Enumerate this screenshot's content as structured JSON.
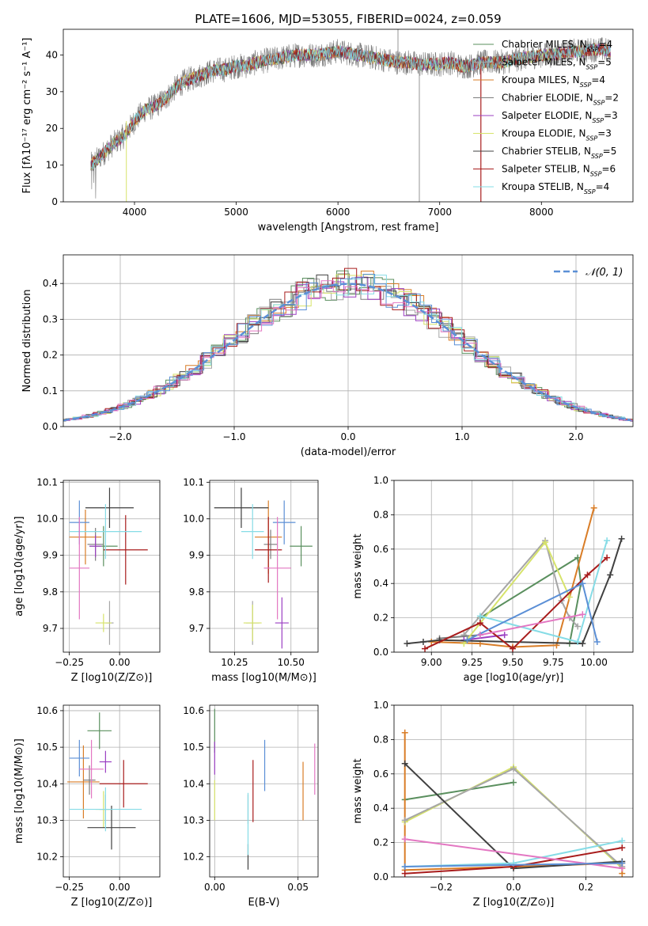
{
  "figure": {
    "title": "PLATE=1606, MJD=53055, FIBERID=0024, z=0.059"
  },
  "models": [
    {
      "name": "Chabrier MILES",
      "nssp": "4",
      "color": "#5a8f5e"
    },
    {
      "name": "Salpeter MILES",
      "nssp": "5",
      "color": "#a6a6a6"
    },
    {
      "name": "Kroupa MILES",
      "nssp": "4",
      "color": "#d97d27"
    },
    {
      "name": "Chabrier ELODIE",
      "nssp": "2",
      "color": "#7d7d7d"
    },
    {
      "name": "Salpeter ELODIE",
      "nssp": "3",
      "color": "#9b3fc2"
    },
    {
      "name": "Kroupa ELODIE",
      "nssp": "3",
      "color": "#d6e36a"
    },
    {
      "name": "Chabrier STELIB",
      "nssp": "5",
      "color": "#404040"
    },
    {
      "name": "Salpeter STELIB",
      "nssp": "6",
      "color": "#a81c1c"
    },
    {
      "name": "Kroupa STELIB",
      "nssp": "4",
      "color": "#86dce6"
    }
  ],
  "chart_data": [
    {
      "id": "spectrum",
      "type": "line",
      "xlabel": "wavelength [Angstrom, rest frame]",
      "ylabel": "Flux [fλ10⁻¹⁷ erg cm⁻² s⁻¹ A⁻¹]",
      "xlim": [
        3300,
        8900
      ],
      "ylim": [
        0,
        47
      ],
      "xticks": [
        4000,
        5000,
        6000,
        7000,
        8000
      ],
      "yticks": [
        0,
        10,
        20,
        30,
        40
      ],
      "grid": false,
      "legend": "top-right",
      "continuum": {
        "x": [
          3570,
          3650,
          3800,
          3900,
          4000,
          4100,
          4200,
          4300,
          4400,
          4500,
          4600,
          4700,
          4800,
          4900,
          5000,
          5100,
          5200,
          5300,
          5400,
          5500,
          5600,
          5700,
          5800,
          5900,
          6000,
          6100,
          6200,
          6300,
          6400,
          6500,
          6600,
          6700,
          6800,
          6900,
          7000,
          7100,
          7200,
          7300,
          7400,
          7500,
          7600,
          7700,
          7800,
          7900,
          8000,
          8100,
          8200,
          8300,
          8400,
          8500,
          8600,
          8680
        ],
        "y": [
          10,
          12,
          16,
          18,
          22,
          25,
          26,
          28,
          31,
          33,
          34,
          35,
          36,
          36,
          37,
          37,
          38,
          38.5,
          39,
          39.5,
          40,
          40,
          40,
          40.5,
          41,
          40.5,
          40,
          39.5,
          39,
          38.5,
          38,
          38,
          37.5,
          37.5,
          37.5,
          38,
          37,
          37,
          38,
          38,
          38,
          38.5,
          39,
          39.5,
          40,
          40,
          40.5,
          41,
          41,
          41.5,
          41.5,
          41
        ]
      }
    },
    {
      "id": "residuals",
      "type": "area",
      "xlabel": "(data-model)/error",
      "ylabel": "Normed distribution",
      "xlim": [
        -2.5,
        2.5
      ],
      "ylim": [
        0,
        0.48
      ],
      "xticks": [
        -2,
        -1,
        0,
        1,
        2
      ],
      "yticks": [
        0.0,
        0.1,
        0.2,
        0.3,
        0.4
      ],
      "grid": true,
      "legend": "top-right",
      "legend_label": "𝒩(0, 1)",
      "gaussian": {
        "mu": 0,
        "sigma": 1,
        "color": "#5b8fd6"
      }
    },
    {
      "id": "age-vs-Z",
      "type": "scatter",
      "xlabel": "Z [log10(Z/Z⊙)]",
      "ylabel": "age [log10(age/yr)]",
      "xlim": [
        -0.28,
        0.2
      ],
      "ylim": [
        9.635,
        10.105
      ],
      "xticks": [
        -0.25,
        0.0
      ],
      "yticks": [
        9.7,
        9.8,
        9.9,
        10.0,
        10.1
      ],
      "grid": true,
      "points": [
        {
          "x": -0.08,
          "y": 9.925,
          "xerr": 0.07,
          "yerr": 0.055,
          "color": "#5a8f5e"
        },
        {
          "x": -0.05,
          "y": 9.715,
          "xerr": 0.02,
          "yerr": 0.06,
          "color": "#a6a6a6"
        },
        {
          "x": -0.17,
          "y": 9.95,
          "xerr": 0.08,
          "yerr": 0.075,
          "color": "#d97d27"
        },
        {
          "x": -0.12,
          "y": 9.93,
          "xerr": 0.04,
          "yerr": 0.045,
          "color": "#7d7d7d"
        },
        {
          "x": -0.12,
          "y": 9.925,
          "xerr": 0.03,
          "yerr": 0.03,
          "color": "#9b3fc2"
        },
        {
          "x": -0.08,
          "y": 9.715,
          "xerr": 0.04,
          "yerr": 0.025,
          "color": "#d6e36a"
        },
        {
          "x": -0.05,
          "y": 10.03,
          "xerr": 0.12,
          "yerr": 0.055,
          "color": "#404040"
        },
        {
          "x": 0.03,
          "y": 9.915,
          "xerr": 0.11,
          "yerr": 0.095,
          "color": "#a81c1c"
        },
        {
          "x": -0.07,
          "y": 9.965,
          "xerr": 0.18,
          "yerr": 0.075,
          "color": "#86dce6"
        },
        {
          "x": -0.2,
          "y": 9.99,
          "xerr": 0.05,
          "yerr": 0.06,
          "color": "#5b8fd6"
        },
        {
          "x": -0.2,
          "y": 9.865,
          "xerr": 0.05,
          "yerr": 0.14,
          "color": "#e377c2"
        }
      ]
    },
    {
      "id": "age-vs-mass",
      "type": "scatter",
      "xlabel": "mass [log10(M/M⊙)]",
      "ylabel": "",
      "xlim": [
        10.14,
        10.62
      ],
      "ylim": [
        9.635,
        10.105
      ],
      "xticks": [
        10.25,
        10.5
      ],
      "yticks": [
        9.7,
        9.8,
        9.9,
        10.0,
        10.1
      ],
      "grid": true,
      "points": [
        {
          "x": 10.545,
          "y": 9.925,
          "xerr": 0.05,
          "yerr": 0.055,
          "color": "#5a8f5e"
        },
        {
          "x": 10.33,
          "y": 9.715,
          "xerr": 0.03,
          "yerr": 0.06,
          "color": "#a6a6a6"
        },
        {
          "x": 10.4,
          "y": 9.95,
          "xerr": 0.06,
          "yerr": 0.1,
          "color": "#d97d27"
        },
        {
          "x": 10.41,
          "y": 9.93,
          "xerr": 0.03,
          "yerr": 0.04,
          "color": "#7d7d7d"
        },
        {
          "x": 10.46,
          "y": 9.715,
          "xerr": 0.03,
          "yerr": 0.07,
          "color": "#9b3fc2"
        },
        {
          "x": 10.33,
          "y": 9.715,
          "xerr": 0.04,
          "yerr": 0.05,
          "color": "#d6e36a"
        },
        {
          "x": 10.28,
          "y": 10.03,
          "xerr": 0.12,
          "yerr": 0.055,
          "color": "#404040"
        },
        {
          "x": 10.4,
          "y": 9.915,
          "xerr": 0.06,
          "yerr": 0.09,
          "color": "#a81c1c"
        },
        {
          "x": 10.33,
          "y": 9.965,
          "xerr": 0.05,
          "yerr": 0.075,
          "color": "#86dce6"
        },
        {
          "x": 10.47,
          "y": 9.99,
          "xerr": 0.05,
          "yerr": 0.06,
          "color": "#5b8fd6"
        },
        {
          "x": 10.44,
          "y": 9.865,
          "xerr": 0.06,
          "yerr": 0.14,
          "color": "#e377c2"
        }
      ]
    },
    {
      "id": "weight-vs-age",
      "type": "line",
      "xlabel": "age [log10(age/yr)]",
      "ylabel": "mass weight",
      "xlim": [
        8.77,
        10.24
      ],
      "ylim": [
        0,
        1.0
      ],
      "xticks": [
        9.0,
        9.25,
        9.5,
        9.75,
        10.0
      ],
      "yticks": [
        0.0,
        0.2,
        0.4,
        0.6,
        0.8,
        1.0
      ],
      "grid": true,
      "series": [
        {
          "color": "#5a8f5e",
          "x": [
            9.85,
            9.92,
            9.9,
            9.3
          ],
          "y": [
            0.05,
            0.4,
            0.55,
            0.2
          ]
        },
        {
          "color": "#a6a6a6",
          "x": [
            9.2,
            9.7,
            9.8,
            9.85,
            9.9
          ],
          "y": [
            0.1,
            0.65,
            0.3,
            0.2,
            0.15
          ]
        },
        {
          "color": "#d97d27",
          "x": [
            9.0,
            9.3,
            9.5,
            9.77,
            10.0
          ],
          "y": [
            0.06,
            0.05,
            0.03,
            0.04,
            0.84
          ]
        },
        {
          "color": "#7d7d7d",
          "x": [
            9.05,
            9.3
          ],
          "y": [
            0.08,
            0.1
          ]
        },
        {
          "color": "#9b3fc2",
          "x": [
            9.2,
            9.45
          ],
          "y": [
            0.07,
            0.1
          ]
        },
        {
          "color": "#d6e36a",
          "x": [
            9.2,
            9.7,
            9.85
          ],
          "y": [
            0.05,
            0.64,
            0.32
          ]
        },
        {
          "color": "#404040",
          "x": [
            8.85,
            8.95,
            9.05,
            9.93,
            10.1,
            10.17
          ],
          "y": [
            0.05,
            0.06,
            0.07,
            0.05,
            0.45,
            0.66
          ]
        },
        {
          "color": "#a81c1c",
          "x": [
            8.96,
            9.3,
            9.5,
            9.96,
            10.08
          ],
          "y": [
            0.02,
            0.17,
            0.02,
            0.45,
            0.55
          ]
        },
        {
          "color": "#86dce6",
          "x": [
            9.3,
            9.9,
            10.08
          ],
          "y": [
            0.21,
            0.06,
            0.65
          ]
        },
        {
          "color": "#5b8fd6",
          "x": [
            9.22,
            9.93,
            10.02
          ],
          "y": [
            0.07,
            0.4,
            0.06
          ]
        },
        {
          "color": "#e377c2",
          "x": [
            9.3,
            9.93
          ],
          "y": [
            0.1,
            0.22
          ]
        }
      ]
    },
    {
      "id": "mass-vs-Z",
      "type": "scatter",
      "xlabel": "Z [log10(Z/Z⊙)]",
      "ylabel": "mass [log10(M/M⊙)]",
      "xlim": [
        -0.28,
        0.2
      ],
      "ylim": [
        10.145,
        10.615
      ],
      "xticks": [
        -0.25,
        0.0
      ],
      "yticks": [
        10.2,
        10.3,
        10.4,
        10.5,
        10.6
      ],
      "grid": true,
      "points": [
        {
          "x": -0.1,
          "y": 10.545,
          "xerr": 0.06,
          "yerr": 0.05,
          "color": "#5a8f5e"
        },
        {
          "x": -0.07,
          "y": 10.33,
          "xerr": 0.03,
          "yerr": 0.04,
          "color": "#a6a6a6"
        },
        {
          "x": -0.18,
          "y": 10.405,
          "xerr": 0.08,
          "yerr": 0.1,
          "color": "#d97d27"
        },
        {
          "x": -0.15,
          "y": 10.41,
          "xerr": 0.03,
          "yerr": 0.04,
          "color": "#7d7d7d"
        },
        {
          "x": -0.07,
          "y": 10.46,
          "xerr": 0.03,
          "yerr": 0.03,
          "color": "#9b3fc2"
        },
        {
          "x": -0.08,
          "y": 10.33,
          "xerr": 0.04,
          "yerr": 0.05,
          "color": "#d6e36a"
        },
        {
          "x": -0.04,
          "y": 10.28,
          "xerr": 0.12,
          "yerr": 0.06,
          "color": "#404040"
        },
        {
          "x": 0.02,
          "y": 10.4,
          "xerr": 0.12,
          "yerr": 0.065,
          "color": "#a81c1c"
        },
        {
          "x": -0.07,
          "y": 10.33,
          "xerr": 0.18,
          "yerr": 0.06,
          "color": "#86dce6"
        },
        {
          "x": -0.2,
          "y": 10.47,
          "xerr": 0.05,
          "yerr": 0.05,
          "color": "#5b8fd6"
        },
        {
          "x": -0.14,
          "y": 10.44,
          "xerr": 0.06,
          "yerr": 0.08,
          "color": "#e377c2"
        }
      ]
    },
    {
      "id": "mass-vs-EBV",
      "type": "scatter",
      "xlabel": "E(B-V)",
      "ylabel": "",
      "xlim": [
        -0.003,
        0.062
      ],
      "ylim": [
        10.145,
        10.615
      ],
      "xticks": [
        0.0,
        0.05
      ],
      "yticks": [
        10.2,
        10.3,
        10.4,
        10.5,
        10.6
      ],
      "grid": true,
      "points": [
        {
          "x": 0.0,
          "y": 10.545,
          "xerr": 0,
          "yerr": 0.06,
          "color": "#5a8f5e"
        },
        {
          "x": 0.02,
          "y": 10.33,
          "xerr": 0,
          "yerr": 0.04,
          "color": "#a6a6a6"
        },
        {
          "x": 0.053,
          "y": 10.38,
          "xerr": 0,
          "yerr": 0.08,
          "color": "#d97d27"
        },
        {
          "x": 0.0,
          "y": 10.47,
          "xerr": 0,
          "yerr": 0.045,
          "color": "#9b3fc2"
        },
        {
          "x": 0.0,
          "y": 10.355,
          "xerr": 0,
          "yerr": 0.055,
          "color": "#d6e36a"
        },
        {
          "x": 0.02,
          "y": 10.2,
          "xerr": 0,
          "yerr": 0.035,
          "color": "#404040"
        },
        {
          "x": 0.023,
          "y": 10.38,
          "xerr": 0,
          "yerr": 0.085,
          "color": "#a81c1c"
        },
        {
          "x": 0.02,
          "y": 10.29,
          "xerr": 0,
          "yerr": 0.085,
          "color": "#86dce6"
        },
        {
          "x": 0.03,
          "y": 10.45,
          "xerr": 0,
          "yerr": 0.07,
          "color": "#5b8fd6"
        },
        {
          "x": 0.06,
          "y": 10.44,
          "xerr": 0,
          "yerr": 0.07,
          "color": "#e377c2"
        }
      ]
    },
    {
      "id": "weight-vs-Z",
      "type": "line",
      "xlabel": "Z [log10(Z/Z⊙)]",
      "ylabel": "mass weight",
      "xlim": [
        -0.33,
        0.33
      ],
      "ylim": [
        0,
        1.0
      ],
      "xticks": [
        -0.2,
        0.0,
        0.2
      ],
      "yticks": [
        0.0,
        0.2,
        0.4,
        0.6,
        0.8,
        1.0
      ],
      "grid": true,
      "series": [
        {
          "color": "#5a8f5e",
          "x": [
            -0.3,
            0.0
          ],
          "y": [
            0.45,
            0.55
          ]
        },
        {
          "color": "#d97d27",
          "x": [
            -0.3,
            -0.3,
            0.0,
            0.3,
            0.3
          ],
          "y": [
            0.84,
            0.04,
            0.06,
            0.08,
            0.02
          ]
        },
        {
          "color": "#d6e36a",
          "x": [
            -0.3,
            0.0,
            0.3
          ],
          "y": [
            0.32,
            0.64,
            0.05
          ]
        },
        {
          "color": "#a6a6a6",
          "x": [
            -0.3,
            0.0,
            0.3
          ],
          "y": [
            0.33,
            0.63,
            0.06
          ]
        },
        {
          "color": "#404040",
          "x": [
            -0.3,
            0.0,
            0.3
          ],
          "y": [
            0.66,
            0.05,
            0.09
          ]
        },
        {
          "color": "#a81c1c",
          "x": [
            -0.3,
            0.0,
            0.3
          ],
          "y": [
            0.02,
            0.06,
            0.17
          ]
        },
        {
          "color": "#86dce6",
          "x": [
            -0.3,
            0.0,
            0.3
          ],
          "y": [
            0.06,
            0.08,
            0.21
          ]
        },
        {
          "color": "#e377c2",
          "x": [
            -0.3,
            0.3
          ],
          "y": [
            0.22,
            0.05
          ]
        },
        {
          "color": "#5b8fd6",
          "x": [
            -0.3,
            0.3
          ],
          "y": [
            0.06,
            0.08
          ]
        }
      ]
    }
  ]
}
